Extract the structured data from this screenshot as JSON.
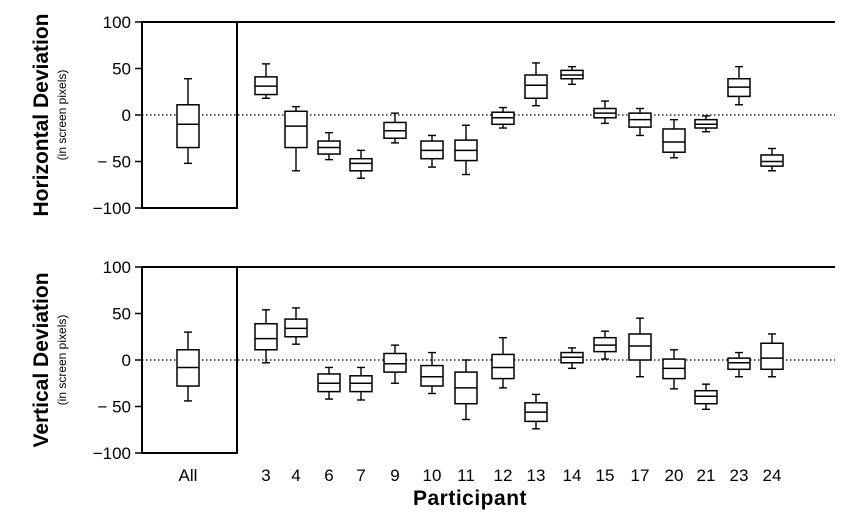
{
  "chart_data": [
    {
      "type": "box",
      "ylabel": "Horizontal Deviation",
      "ylabel_sub": "(in screen pixels)",
      "xlabel": "",
      "ylim": [
        -100,
        100
      ],
      "yticks": [
        100,
        50,
        0,
        -50,
        -100
      ],
      "ytick_labels": [
        "100",
        "50",
        "0",
        "− 50",
        "−100"
      ],
      "zero_line": "dotted",
      "categories": [
        "All",
        "3",
        "4",
        "6",
        "7",
        "9",
        "10",
        "11",
        "12",
        "13",
        "14",
        "15",
        "17",
        "20",
        "21",
        "23",
        "24"
      ],
      "boxes": [
        {
          "label": "All",
          "min": -52,
          "q1": -35,
          "median": -10,
          "q3": 11,
          "max": 39
        },
        {
          "label": "3",
          "min": 18,
          "q1": 22,
          "median": 31,
          "q3": 41,
          "max": 55
        },
        {
          "label": "4",
          "min": -60,
          "q1": -35,
          "median": -12,
          "q3": 4,
          "max": 9
        },
        {
          "label": "6",
          "min": -48,
          "q1": -42,
          "median": -35,
          "q3": -28,
          "max": -19
        },
        {
          "label": "7",
          "min": -68,
          "q1": -60,
          "median": -52,
          "q3": -47,
          "max": -38
        },
        {
          "label": "9",
          "min": -30,
          "q1": -25,
          "median": -17,
          "q3": -8,
          "max": 2
        },
        {
          "label": "10",
          "min": -56,
          "q1": -47,
          "median": -38,
          "q3": -28,
          "max": -22
        },
        {
          "label": "11",
          "min": -64,
          "q1": -49,
          "median": -38,
          "q3": -27,
          "max": -11
        },
        {
          "label": "12",
          "min": -14,
          "q1": -10,
          "median": -3,
          "q3": 3,
          "max": 8
        },
        {
          "label": "13",
          "min": 10,
          "q1": 18,
          "median": 32,
          "q3": 43,
          "max": 56
        },
        {
          "label": "14",
          "min": 33,
          "q1": 39,
          "median": 43,
          "q3": 48,
          "max": 52
        },
        {
          "label": "15",
          "min": -9,
          "q1": -3,
          "median": 2,
          "q3": 7,
          "max": 15
        },
        {
          "label": "17",
          "min": -22,
          "q1": -13,
          "median": -5,
          "q3": 2,
          "max": 7
        },
        {
          "label": "20",
          "min": -46,
          "q1": -40,
          "median": -29,
          "q3": -15,
          "max": -5
        },
        {
          "label": "21",
          "min": -18,
          "q1": -14,
          "median": -10,
          "q3": -5,
          "max": -1
        },
        {
          "label": "23",
          "min": 11,
          "q1": 20,
          "median": 30,
          "q3": 39,
          "max": 52
        },
        {
          "label": "24",
          "min": -60,
          "q1": -55,
          "median": -50,
          "q3": -43,
          "max": -36
        }
      ]
    },
    {
      "type": "box",
      "ylabel": "Vertical Deviation",
      "ylabel_sub": "(in screen pixels)",
      "xlabel": "Participant",
      "ylim": [
        -100,
        100
      ],
      "yticks": [
        100,
        50,
        0,
        -50,
        -100
      ],
      "ytick_labels": [
        "100",
        "50",
        "0",
        "− 50",
        "−100"
      ],
      "zero_line": "dotted",
      "categories": [
        "All",
        "3",
        "4",
        "6",
        "7",
        "9",
        "10",
        "11",
        "12",
        "13",
        "14",
        "15",
        "17",
        "20",
        "21",
        "23",
        "24"
      ],
      "boxes": [
        {
          "label": "All",
          "min": -44,
          "q1": -28,
          "median": -8,
          "q3": 11,
          "max": 30
        },
        {
          "label": "3",
          "min": -3,
          "q1": 11,
          "median": 23,
          "q3": 39,
          "max": 54
        },
        {
          "label": "4",
          "min": 17,
          "q1": 25,
          "median": 34,
          "q3": 44,
          "max": 56
        },
        {
          "label": "6",
          "min": -42,
          "q1": -34,
          "median": -25,
          "q3": -15,
          "max": -8
        },
        {
          "label": "7",
          "min": -43,
          "q1": -34,
          "median": -25,
          "q3": -17,
          "max": -8
        },
        {
          "label": "9",
          "min": -25,
          "q1": -13,
          "median": -4,
          "q3": 7,
          "max": 16
        },
        {
          "label": "10",
          "min": -36,
          "q1": -28,
          "median": -18,
          "q3": -6,
          "max": 8
        },
        {
          "label": "11",
          "min": -64,
          "q1": -47,
          "median": -30,
          "q3": -13,
          "max": 0
        },
        {
          "label": "12",
          "min": -30,
          "q1": -20,
          "median": -8,
          "q3": 6,
          "max": 24
        },
        {
          "label": "13",
          "min": -74,
          "q1": -66,
          "median": -56,
          "q3": -46,
          "max": -37
        },
        {
          "label": "14",
          "min": -9,
          "q1": -3,
          "median": 3,
          "q3": 8,
          "max": 13
        },
        {
          "label": "15",
          "min": 1,
          "q1": 9,
          "median": 16,
          "q3": 24,
          "max": 31
        },
        {
          "label": "17",
          "min": -18,
          "q1": 0,
          "median": 15,
          "q3": 28,
          "max": 45
        },
        {
          "label": "20",
          "min": -31,
          "q1": -20,
          "median": -9,
          "q3": 1,
          "max": 11
        },
        {
          "label": "21",
          "min": -53,
          "q1": -47,
          "median": -39,
          "q3": -33,
          "max": -26
        },
        {
          "label": "23",
          "min": -18,
          "q1": -10,
          "median": -3,
          "q3": 2,
          "max": 8
        },
        {
          "label": "24",
          "min": -18,
          "q1": -10,
          "median": 2,
          "q3": 18,
          "max": 28
        }
      ]
    }
  ]
}
